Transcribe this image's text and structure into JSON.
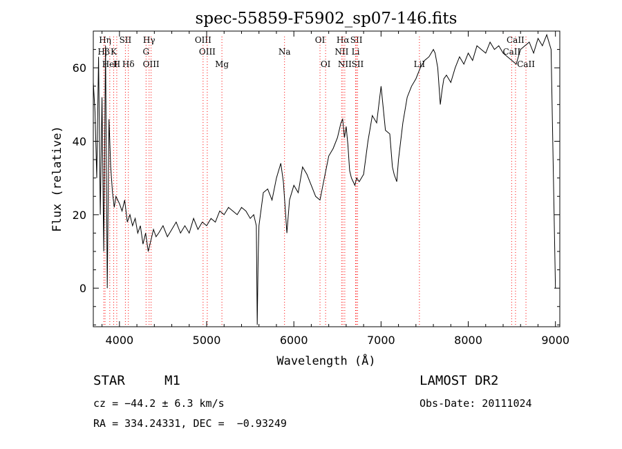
{
  "chart_data": {
    "type": "line",
    "title": "spec-55859-F5902_sp07-146.fits",
    "xlabel": "Wavelength (Å)",
    "ylabel": "Flux (relative)",
    "xlim": [
      3700,
      9050
    ],
    "ylim": [
      -10.5,
      70
    ],
    "xticks": [
      4000,
      5000,
      6000,
      7000,
      8000,
      9000
    ],
    "yticks": [
      0,
      20,
      40,
      60
    ],
    "line_color": "#000000",
    "marker_color": "#ff0000",
    "series": [
      {
        "x": [
          3700,
          3720,
          3740,
          3760,
          3780,
          3800,
          3820,
          3840,
          3860,
          3880,
          3900,
          3920,
          3940,
          3960,
          3980,
          4000,
          4030,
          4060,
          4090,
          4120,
          4150,
          4180,
          4210,
          4240,
          4270,
          4300,
          4330,
          4360,
          4390,
          4420,
          4450,
          4500,
          4550,
          4600,
          4650,
          4700,
          4750,
          4800,
          4850,
          4900,
          4950,
          5000,
          5050,
          5100,
          5150,
          5200,
          5250,
          5300,
          5350,
          5400,
          5450,
          5500,
          5540,
          5570,
          5580,
          5590,
          5600,
          5650,
          5700,
          5750,
          5800,
          5850,
          5880,
          5900,
          5920,
          5950,
          6000,
          6050,
          6100,
          6150,
          6200,
          6250,
          6300,
          6350,
          6400,
          6450,
          6500,
          6540,
          6560,
          6580,
          6600,
          6620,
          6640,
          6660,
          6680,
          6700,
          6720,
          6750,
          6800,
          6850,
          6900,
          6950,
          7000,
          7050,
          7100,
          7130,
          7150,
          7180,
          7200,
          7250,
          7300,
          7350,
          7400,
          7450,
          7500,
          7550,
          7600,
          7620,
          7650,
          7680,
          7700,
          7720,
          7750,
          7800,
          7850,
          7900,
          7950,
          8000,
          8050,
          8100,
          8150,
          8200,
          8250,
          8300,
          8350,
          8400,
          8450,
          8500,
          8550,
          8600,
          8650,
          8700,
          8750,
          8800,
          8850,
          8900,
          8950,
          9000
        ],
        "y": [
          56,
          48,
          30,
          63,
          20,
          52,
          10,
          66,
          0,
          46,
          33,
          26,
          22,
          25,
          24,
          23,
          21,
          24,
          18,
          20,
          17,
          19,
          15,
          17,
          12,
          15,
          10,
          13,
          16,
          14,
          15,
          17,
          14,
          16,
          18,
          15,
          17,
          15,
          19,
          16,
          18,
          17,
          19,
          18,
          21,
          20,
          22,
          21,
          20,
          22,
          21,
          19,
          20,
          17,
          -10,
          8,
          17,
          26,
          27,
          24,
          30,
          34,
          29,
          22,
          15,
          24,
          28,
          26,
          33,
          31,
          28,
          25,
          24,
          30,
          36,
          38,
          41,
          45,
          46,
          41,
          44,
          39,
          32,
          30,
          29,
          28,
          30,
          29,
          31,
          40,
          47,
          45,
          55,
          43,
          42,
          33,
          31,
          29,
          35,
          45,
          52,
          55,
          57,
          60,
          62,
          63,
          65,
          64,
          60,
          50,
          54,
          57,
          58,
          56,
          60,
          63,
          61,
          64,
          62,
          66,
          65,
          64,
          67,
          65,
          66,
          64,
          63,
          62,
          61,
          65,
          66,
          67,
          64,
          68,
          66,
          69,
          65,
          0
        ]
      }
    ],
    "line_markers": [
      {
        "label": "Hη",
        "x": 3835,
        "row": 0
      },
      {
        "label": "Hβ",
        "x": 3820,
        "row": 1
      },
      {
        "label": "HeI",
        "x": 3889,
        "row": 2
      },
      {
        "label": "K",
        "x": 3934,
        "row": 1
      },
      {
        "label": "H",
        "x": 3969,
        "row": 2
      },
      {
        "label": "SII",
        "x": 4068,
        "row": 0
      },
      {
        "label": "Hδ",
        "x": 4102,
        "row": 2
      },
      {
        "label": "Hγ",
        "x": 4340,
        "row": 0
      },
      {
        "label": "G",
        "x": 4305,
        "row": 1
      },
      {
        "label": "OIII",
        "x": 4363,
        "row": 2
      },
      {
        "label": "OIII",
        "x": 4959,
        "row": 0
      },
      {
        "label": "OIII",
        "x": 5007,
        "row": 1
      },
      {
        "label": "Mg",
        "x": 5175,
        "row": 2
      },
      {
        "label": "Na",
        "x": 5893,
        "row": 1
      },
      {
        "label": "OI",
        "x": 6300,
        "row": 0
      },
      {
        "label": "OI",
        "x": 6364,
        "row": 2
      },
      {
        "label": "Hα",
        "x": 6563,
        "row": 0
      },
      {
        "label": "NII",
        "x": 6548,
        "row": 1
      },
      {
        "label": "NII",
        "x": 6584,
        "row": 2
      },
      {
        "label": "SII",
        "x": 6717,
        "row": 0
      },
      {
        "label": "Li",
        "x": 6708,
        "row": 1
      },
      {
        "label": "SII",
        "x": 6731,
        "row": 2
      },
      {
        "label": "LiI",
        "x": 7440,
        "row": 2
      },
      {
        "label": "CaII",
        "x": 8542,
        "row": 0
      },
      {
        "label": "CaII",
        "x": 8498,
        "row": 1
      },
      {
        "label": "CaII",
        "x": 8662,
        "row": 2
      }
    ]
  },
  "info": {
    "object_class": "STAR",
    "subclass": "M1",
    "survey": "LAMOST DR2",
    "cz": "cz = −44.2 ± 6.3 km/s",
    "obs_date": "Obs-Date: 20111024",
    "coords": "RA = 334.24331, DEC =  −0.93249"
  }
}
